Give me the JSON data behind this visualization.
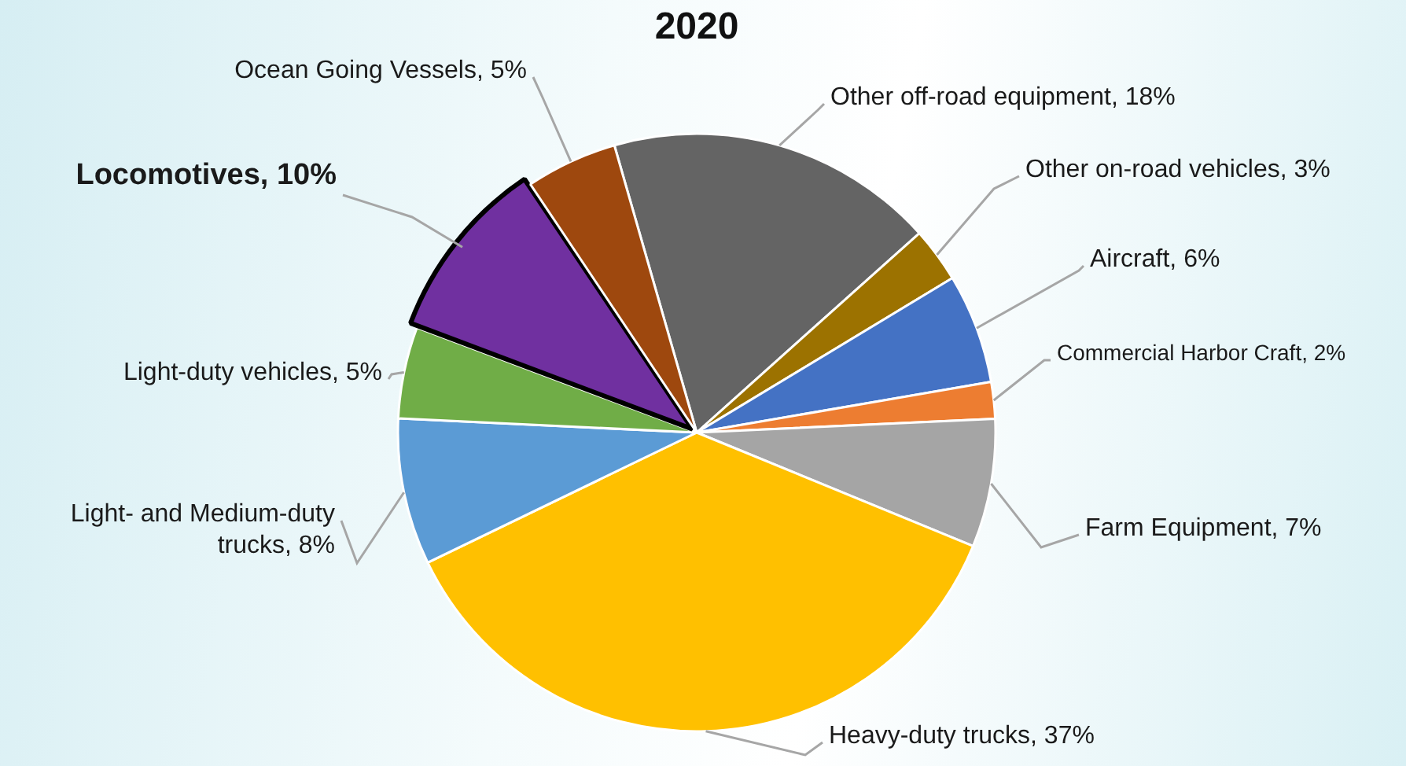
{
  "chart_data": {
    "type": "pie",
    "title": "2020",
    "categories": [
      "Other off-road equipment",
      "Other on-road vehicles",
      "Aircraft",
      "Commercial Harbor Craft",
      "Farm Equipment",
      "Heavy-duty trucks",
      "Light- and Medium-duty trucks",
      "Light-duty vehicles",
      "Locomotives",
      "Ocean Going Vessels"
    ],
    "values": [
      18,
      3,
      6,
      2,
      7,
      37,
      8,
      5,
      10,
      5
    ],
    "value_labels": [
      "18%",
      "3%",
      "6%",
      "2%",
      "7%",
      "37%",
      "8%",
      "5%",
      "10%",
      "5%"
    ],
    "colors": [
      "#646464",
      "#9c7200",
      "#4472c4",
      "#ed7d31",
      "#a5a5a5",
      "#ffc000",
      "#5b9bd5",
      "#70ad47",
      "#7030a0",
      "#9e480e"
    ],
    "legend": false
  }
}
